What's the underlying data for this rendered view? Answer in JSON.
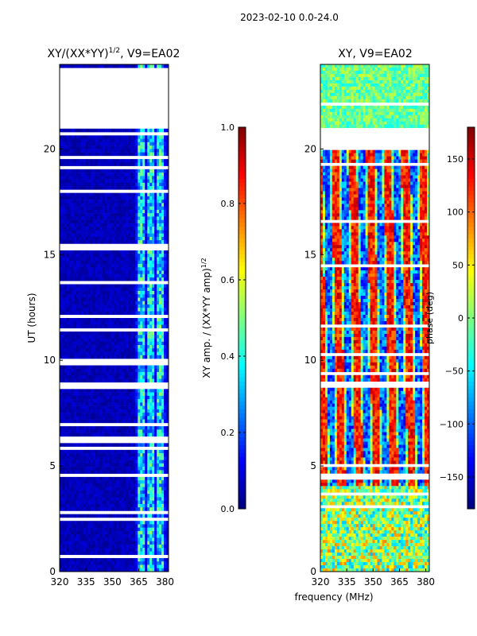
{
  "suptitle": "2023-02-10 0.0-24.0",
  "xlabel": "frequency (MHz)",
  "chart_data": [
    {
      "type": "heatmap",
      "title": "XY/(XX*YY)",
      "title_exp": "1/2",
      "title_tail": ", V9=EA02",
      "ylabel": "UT (hours)",
      "xlim": [
        320,
        382
      ],
      "ylim": [
        0,
        24
      ],
      "xticks": [
        320,
        335,
        350,
        365,
        380
      ],
      "yticks": [
        0,
        5,
        10,
        15,
        20
      ],
      "gaps_hours": [
        [
          21.0,
          23.8
        ],
        [
          15.3,
          15.5
        ],
        [
          8.7,
          8.95
        ],
        [
          4.4,
          4.6
        ]
      ],
      "bright_band_mhz": [
        363,
        381
      ],
      "colorbar": {
        "label": "XY amp. / (XX*YY amp)",
        "label_exp": "1/2",
        "range": [
          0.0,
          1.0
        ],
        "ticks": [
          "0.0",
          "0.2",
          "0.4",
          "0.6",
          "0.8",
          "1.0"
        ]
      }
    },
    {
      "type": "heatmap",
      "title": "XY, V9=EA02",
      "xlim": [
        320,
        382
      ],
      "ylim": [
        0,
        24
      ],
      "xticks": [
        320,
        335,
        350,
        365,
        380
      ],
      "yticks": [
        0,
        5,
        10,
        15,
        20
      ],
      "gaps_hours": [
        [
          19.9,
          21.0
        ],
        [
          8.7,
          8.95
        ],
        [
          4.4,
          4.6
        ]
      ],
      "colorbar": {
        "label": "phase (deg)",
        "range": [
          -180,
          180
        ],
        "ticks": [
          "−150",
          "−100",
          "−50",
          "0",
          "50",
          "100",
          "150"
        ]
      }
    }
  ]
}
